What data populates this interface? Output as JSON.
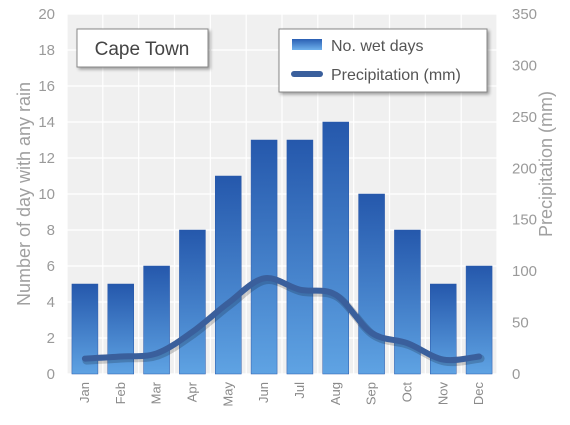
{
  "chart_data": {
    "type": "bar",
    "title": "Cape Town",
    "categories": [
      "Jan",
      "Feb",
      "Mar",
      "Apr",
      "May",
      "Jun",
      "Jul",
      "Aug",
      "Sep",
      "Oct",
      "Nov",
      "Dec"
    ],
    "series": [
      {
        "name": "No. wet days",
        "type": "bar",
        "axis": "left",
        "color": "#2f66b8",
        "values": [
          5,
          5,
          6,
          8,
          11,
          13,
          13,
          14,
          10,
          8,
          5,
          6
        ]
      },
      {
        "name": "Precipitation (mm)",
        "type": "line",
        "axis": "right",
        "color": "#3a5f9c",
        "values": [
          15,
          17,
          20,
          41,
          69,
          93,
          82,
          77,
          40,
          30,
          14,
          17
        ]
      }
    ],
    "ylabel": "Number of day with any rain",
    "ylim": [
      0,
      20
    ],
    "yticks": [
      0,
      2,
      4,
      6,
      8,
      10,
      12,
      14,
      16,
      18,
      20
    ],
    "y2label": "Precipitation (mm)",
    "y2lim": [
      0,
      350
    ],
    "y2ticks": [
      0,
      50,
      100,
      150,
      200,
      250,
      300,
      350
    ],
    "grid": true,
    "legend_position": "top-right"
  }
}
